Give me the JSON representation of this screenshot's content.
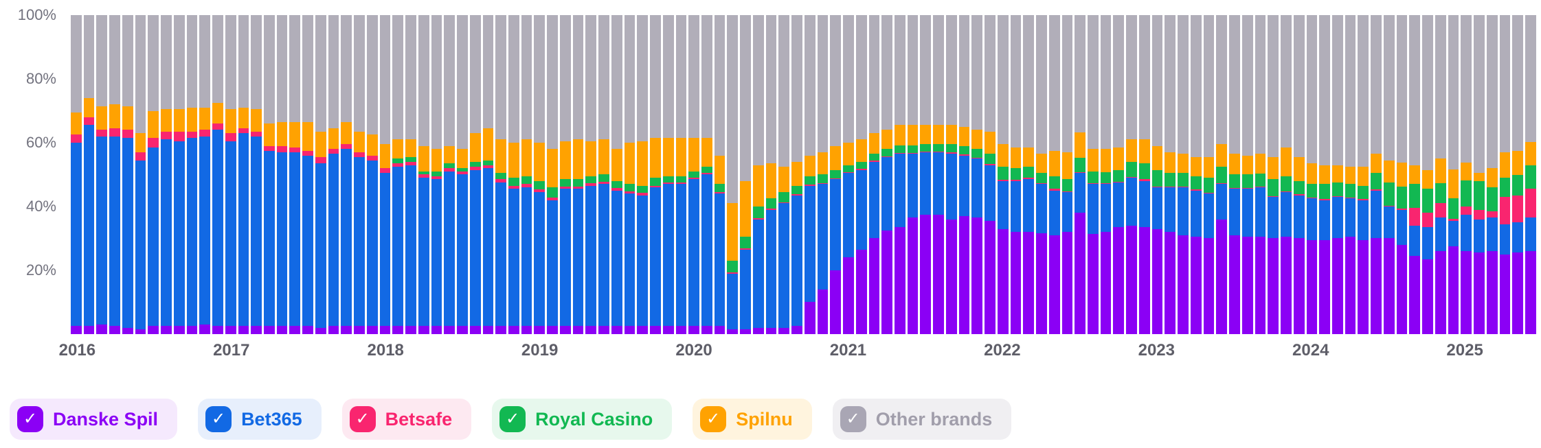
{
  "chart_data": {
    "type": "bar",
    "stacked": true,
    "percent": true,
    "title": "",
    "xlabel": "",
    "ylabel": "",
    "start_month": "2016-01",
    "end_month": "2025-06",
    "months_count": 114,
    "grid": false,
    "ylim": [
      0,
      100
    ],
    "y_ticks": [
      {
        "label": "100%",
        "value": 100
      },
      {
        "label": "80%",
        "value": 80
      },
      {
        "label": "60%",
        "value": 60
      },
      {
        "label": "40%",
        "value": 40
      },
      {
        "label": "20%",
        "value": 20
      }
    ],
    "x_ticks": [
      {
        "label": "2016",
        "month_index": 0
      },
      {
        "label": "2017",
        "month_index": 12
      },
      {
        "label": "2018",
        "month_index": 24
      },
      {
        "label": "2019",
        "month_index": 36
      },
      {
        "label": "2020",
        "month_index": 48
      },
      {
        "label": "2021",
        "month_index": 60
      },
      {
        "label": "2022",
        "month_index": 72
      },
      {
        "label": "2023",
        "month_index": 84
      },
      {
        "label": "2024",
        "month_index": 96
      },
      {
        "label": "2025",
        "month_index": 108
      }
    ],
    "series": [
      {
        "key": "danske-spil",
        "name": "Danske Spil",
        "color": "#8B00F5",
        "values": [
          2.5,
          2.5,
          3,
          2.5,
          2,
          1.5,
          2.5,
          2.5,
          2.5,
          2.5,
          3,
          2.5,
          2.5,
          2.5,
          2.5,
          2.5,
          2.5,
          2.5,
          2.5,
          2,
          2.5,
          2.5,
          2.5,
          2.5,
          2.5,
          2.5,
          2.5,
          2.5,
          2.5,
          2.5,
          2.5,
          2.5,
          2.5,
          2.5,
          2.5,
          2.5,
          2.5,
          2.5,
          2.5,
          2.5,
          2.5,
          2.5,
          2.5,
          2.5,
          2.5,
          2.5,
          2.5,
          2.5,
          2.5,
          2.5,
          2.5,
          1.5,
          1.5,
          2,
          2,
          2,
          2.5,
          10,
          14,
          20,
          24,
          26.5,
          30,
          32.5,
          33.5,
          36.5,
          37.5,
          37.5,
          36,
          37,
          36.5,
          35.5,
          33,
          32,
          32,
          31.5,
          31,
          32,
          38,
          31.5,
          32,
          33.5,
          34,
          33.5,
          33,
          32,
          31,
          30.5,
          30,
          36,
          31,
          30.5,
          30.5,
          30,
          30.5,
          30,
          29.5,
          29.5,
          30,
          30.5,
          29.5,
          30,
          30,
          28,
          24.5,
          23.5,
          26,
          27.5,
          26,
          25.5,
          26,
          25,
          25.5,
          26
        ]
      },
      {
        "key": "bet365",
        "name": "Bet365",
        "color": "#1269E4",
        "values": [
          57.5,
          63,
          59,
          59.5,
          59.5,
          53,
          56,
          58.5,
          58,
          59,
          59,
          61.5,
          58,
          60.5,
          59.5,
          55,
          54.5,
          54.5,
          53.5,
          51.5,
          54,
          55.5,
          53,
          52,
          48,
          50,
          50.5,
          46.5,
          46,
          48.5,
          47.5,
          49,
          49.5,
          45,
          43,
          43.5,
          42,
          39.5,
          43,
          43,
          44,
          44.5,
          42.5,
          41.5,
          41,
          43.5,
          44.5,
          44.5,
          46,
          47.5,
          41.5,
          17.5,
          25,
          34,
          37,
          39,
          41,
          36.5,
          33,
          28.5,
          26.5,
          25,
          24,
          23,
          23,
          20,
          19.5,
          19.5,
          20.5,
          19,
          18.5,
          17.5,
          15,
          16,
          16.5,
          15.5,
          14,
          12.5,
          12.5,
          15.5,
          15,
          14,
          15,
          14.5,
          13,
          14,
          15,
          14.5,
          14,
          11,
          14.5,
          15,
          15.5,
          13,
          14,
          13.5,
          13,
          12.5,
          13,
          12,
          12.5,
          15,
          10,
          11,
          9.5,
          10,
          10.5,
          8,
          11.5,
          10.5,
          10.5,
          9.5,
          9.5,
          10.5
        ]
      },
      {
        "key": "betsafe",
        "name": "Betsafe",
        "color": "#F9256F",
        "values": [
          2.5,
          2.5,
          2,
          2.5,
          2.5,
          2.5,
          3,
          2.5,
          3,
          2,
          2,
          2,
          2.5,
          1.5,
          1.5,
          1.5,
          2,
          1.5,
          1.5,
          2,
          1.5,
          1.5,
          1.5,
          1.5,
          1.5,
          1,
          1,
          1,
          1,
          1,
          1,
          1,
          1,
          1,
          1,
          1,
          0.8,
          0.8,
          0.8,
          0.8,
          0.8,
          0.8,
          0.8,
          0.8,
          0.8,
          0.5,
          0.5,
          0.5,
          0.5,
          0.5,
          0.5,
          0.3,
          0.3,
          0.3,
          0.3,
          0.3,
          0.3,
          0.3,
          0.3,
          0.3,
          0.3,
          0.3,
          0.3,
          0.3,
          0.3,
          0.3,
          0.3,
          0.3,
          0.5,
          0.3,
          0.3,
          0.3,
          0.3,
          0.3,
          0.5,
          0.3,
          0.5,
          0.3,
          0.3,
          0.3,
          0.3,
          0.3,
          0.3,
          0.5,
          0.3,
          0.3,
          0.3,
          0.3,
          0.3,
          0.3,
          0.3,
          0.3,
          0.3,
          0.3,
          0.3,
          0.3,
          0.3,
          0.3,
          0.3,
          0.3,
          0.3,
          0.3,
          0.3,
          0.3,
          5.5,
          4.5,
          4.5,
          0.6,
          2.6,
          3,
          2,
          8.5,
          8.5,
          9
        ]
      },
      {
        "key": "royal-casino",
        "name": "Royal Casino",
        "color": "#12B852",
        "values": [
          0,
          0,
          0,
          0,
          0,
          0,
          0,
          0,
          0,
          0,
          0,
          0,
          0,
          0,
          0,
          0,
          0,
          0,
          0,
          0,
          0,
          0,
          0,
          0,
          0,
          1.5,
          1.5,
          1,
          1.5,
          1.5,
          1,
          1.5,
          1.5,
          2,
          2.5,
          2.5,
          2.7,
          3.2,
          2.2,
          2.2,
          2.2,
          2.2,
          2.2,
          2.2,
          2.2,
          2.5,
          2,
          2,
          2,
          2,
          2.5,
          3.7,
          3.7,
          3.7,
          3.2,
          3.2,
          2.7,
          2.7,
          2.7,
          2.7,
          2.2,
          2.2,
          2.2,
          2.2,
          2.4,
          2.4,
          2.2,
          2.2,
          2.5,
          2.7,
          2.7,
          3.2,
          4.2,
          3.7,
          3.5,
          3.2,
          4,
          3.7,
          4.5,
          3.7,
          3.5,
          3.7,
          4.7,
          5,
          5.2,
          4.2,
          4.2,
          4.2,
          4.7,
          5.2,
          4.2,
          4.2,
          4,
          5.2,
          4.7,
          4.2,
          4.2,
          4.7,
          4.2,
          4.2,
          4.2,
          5.2,
          7.2,
          7,
          7.5,
          7.5,
          6.4,
          6.5,
          8,
          9,
          7.5,
          6,
          6.5,
          7.5
        ]
      },
      {
        "key": "spilnu",
        "name": "Spilnu",
        "color": "#FFA201",
        "values": [
          7,
          6,
          7.5,
          7.5,
          7.5,
          6,
          8.5,
          7,
          7,
          7.5,
          7,
          6.5,
          7.5,
          6.5,
          7,
          7,
          7.5,
          8,
          9,
          8,
          6.5,
          7,
          6.5,
          6.5,
          7.5,
          6,
          5.5,
          8,
          7,
          5.5,
          6,
          9,
          10,
          10.5,
          11,
          11.5,
          12,
          12,
          12,
          12.5,
          11,
          11,
          10,
          13,
          14,
          12.5,
          12,
          12,
          10.5,
          9,
          9,
          18,
          17.5,
          13,
          11,
          8,
          7.5,
          6.5,
          7,
          7.5,
          7,
          7,
          6.5,
          6,
          6.3,
          6.3,
          6,
          6,
          6,
          6,
          6,
          7,
          7,
          6.5,
          6,
          6,
          8,
          8.5,
          8,
          7,
          7.2,
          7,
          7,
          7.5,
          7.5,
          6.5,
          6,
          6,
          6.5,
          7,
          6.5,
          6,
          6.2,
          7,
          9,
          7.5,
          6.5,
          6,
          5.5,
          5.5,
          6,
          6,
          7,
          7.5,
          5.8,
          6,
          7.6,
          9,
          5.6,
          2.5,
          6,
          8,
          7.5,
          7.3
        ]
      },
      {
        "key": "other-brands",
        "name": "Other brands",
        "color": "#B1AEB9",
        "remainder": true,
        "values": []
      }
    ]
  },
  "legend": {
    "check_glyph": "✓",
    "items": [
      {
        "slug": "danske-spil",
        "label": "Danske Spil",
        "color": "#8B00F5",
        "bg": "#F5E9FD",
        "text_color": "#8B00F5",
        "checked": true
      },
      {
        "slug": "bet365",
        "label": "Bet365",
        "color": "#1269E4",
        "bg": "#E7EFFC",
        "text_color": "#1269E4",
        "checked": true
      },
      {
        "slug": "betsafe",
        "label": "Betsafe",
        "color": "#F9256F",
        "bg": "#FDE9F1",
        "text_color": "#F9256F",
        "checked": true
      },
      {
        "slug": "royal-casino",
        "label": "Royal Casino",
        "color": "#12B852",
        "bg": "#E7F8ED",
        "text_color": "#12B852",
        "checked": true
      },
      {
        "slug": "spilnu",
        "label": "Spilnu",
        "color": "#FFA201",
        "bg": "#FFF4DE",
        "text_color": "#FFA201",
        "checked": true
      },
      {
        "slug": "other-brands",
        "label": "Other brands",
        "color": "#A9A6B4",
        "bg": "#F0EFF2",
        "text_color": "#A19EAB",
        "checked": true
      }
    ]
  }
}
